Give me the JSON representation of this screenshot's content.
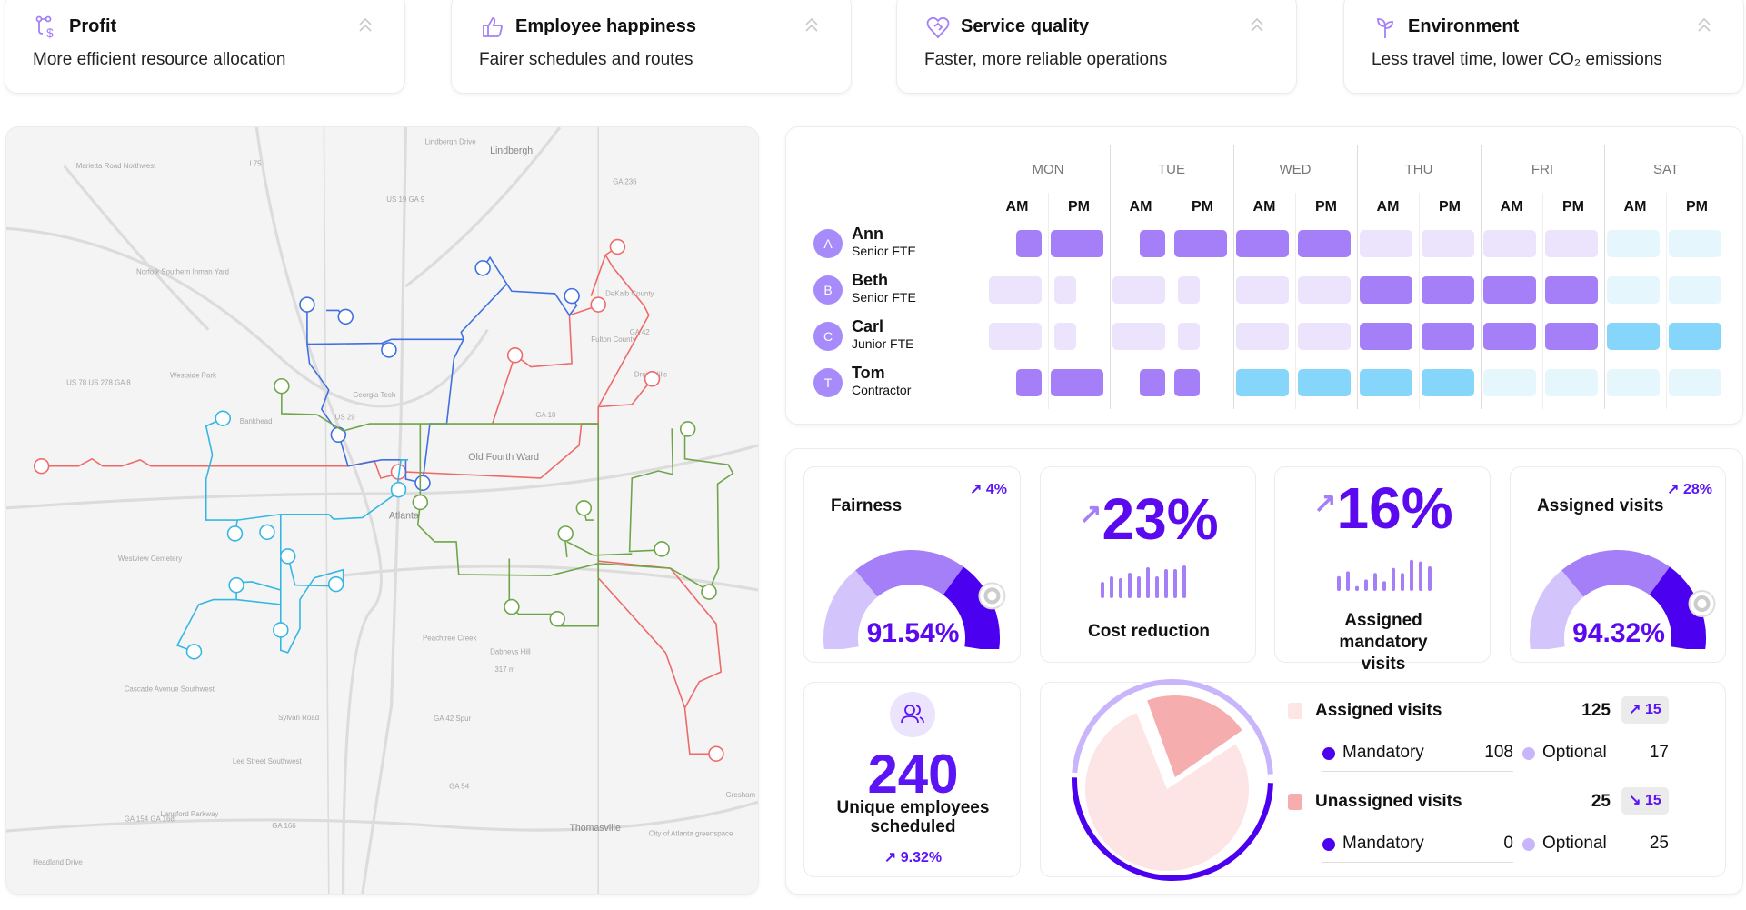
{
  "benefits": [
    {
      "icon": "route-dollar-icon",
      "title": "Profit",
      "subtitle": "More efficient resource allocation"
    },
    {
      "icon": "thumbs-up-icon",
      "title": "Employee happiness",
      "subtitle": "Fairer schedules and routes"
    },
    {
      "icon": "heart-handshake-icon",
      "title": "Service quality",
      "subtitle": "Faster, more reliable operations"
    },
    {
      "icon": "sprout-icon",
      "title": "Environment",
      "subtitle": "Less travel time, lower CO₂ emissions"
    }
  ],
  "map": {
    "labels": [
      "Lindbergh",
      "Old Fourth Ward",
      "Atlanta",
      "Peachtree Creek",
      "Dabneys Hill",
      "317 m",
      "Thomasville",
      "Westview Cemetery",
      "Westside Park",
      "Georgia Tech",
      "Norfolk Southern Inman Yard",
      "Druid Hills",
      "Gresham",
      "I 75",
      "US 19 GA 9",
      "GA 236",
      "GA 10",
      "GA 42",
      "GA 42 Spur",
      "GA 54",
      "GA 166",
      "GA 154 GA 166",
      "US 78 US 278 GA 8",
      "US 29",
      "Fulton County",
      "DeKalb County",
      "Langford Parkway",
      "Cascade Avenue Southwest",
      "Lee Street Southwest",
      "Sylvan Road",
      "Headland Drive",
      "Lindbergh Drive",
      "Marietta Road Northwest",
      "City of Atlanta greenspace",
      "Bankhead"
    ],
    "route_colors": {
      "red": "#ee6a6a",
      "blue": "#3f6fe0",
      "cyan": "#36b7e3",
      "green": "#6ea54a"
    }
  },
  "schedule": {
    "days": [
      "MON",
      "TUE",
      "WED",
      "THU",
      "FRI",
      "SAT"
    ],
    "halves": [
      "AM",
      "PM"
    ],
    "legend_colors": {
      "assigned": "#a47ff8",
      "available": "#ece4fd",
      "contractor": "#85d6fa",
      "contractor_available": "#e6f6fd"
    },
    "employees": [
      {
        "initial": "A",
        "name": "Ann",
        "role": "Senior FTE",
        "cells": [
          "H",
          "F",
          "H",
          "F",
          "F",
          "F",
          "L",
          "L",
          "L",
          "L",
          "c",
          "c"
        ]
      },
      {
        "initial": "B",
        "name": "Beth",
        "role": "Senior FTE",
        "cells": [
          "L",
          "l",
          "L",
          "l",
          "L",
          "L",
          "F",
          "F",
          "F",
          "F",
          "c",
          "c"
        ]
      },
      {
        "initial": "C",
        "name": "Carl",
        "role": "Junior FTE",
        "cells": [
          "L",
          "l",
          "L",
          "l",
          "L",
          "L",
          "F",
          "F",
          "F",
          "F",
          "C",
          "C"
        ]
      },
      {
        "initial": "T",
        "name": "Tom",
        "role": "Contractor",
        "cells": [
          "H",
          "F",
          "H",
          "p",
          "C",
          "C",
          "C",
          "C",
          "c",
          "c",
          "c",
          "c"
        ]
      }
    ]
  },
  "metrics": {
    "fairness": {
      "title": "Fairness",
      "trend": "4%",
      "value": "91.54%",
      "fraction": 0.9154
    },
    "cost": {
      "value": "23%",
      "label": "Cost reduction",
      "bars": [
        0.45,
        0.6,
        0.55,
        0.7,
        0.6,
        0.85,
        0.6,
        0.8,
        0.8,
        0.9
      ]
    },
    "mandatory": {
      "value": "16%",
      "label": "Assigned mandatory visits",
      "bars": [
        0.45,
        0.6,
        0.15,
        0.35,
        0.55,
        0.3,
        0.7,
        0.55,
        0.95,
        0.9,
        0.75
      ]
    },
    "assigned": {
      "title": "Assigned visits",
      "trend": "28%",
      "value": "94.32%",
      "fraction": 0.9432
    },
    "employees": {
      "value": "240",
      "label": "Unique employees scheduled",
      "trend": "9.32%"
    },
    "visits": {
      "assigned": {
        "label": "Assigned visits",
        "value": "125",
        "delta": "15",
        "delta_dir": "up",
        "mandatory_label": "Mandatory",
        "mandatory": "108",
        "optional_label": "Optional",
        "optional": "17"
      },
      "unassigned": {
        "label": "Unassigned visits",
        "value": "25",
        "delta": "15",
        "delta_dir": "down",
        "mandatory_label": "Mandatory",
        "mandatory": "0",
        "optional_label": "Optional",
        "optional": "25"
      },
      "colors": {
        "assigned": "#fde5e5",
        "unassigned": "#f5adad",
        "mandatory": "#4c00f0",
        "optional": "#c9b5fb"
      }
    }
  }
}
